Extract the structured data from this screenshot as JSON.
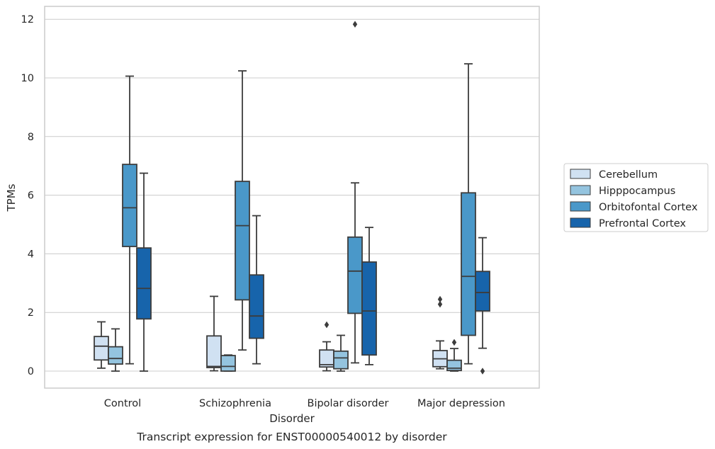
{
  "chart_data": {
    "type": "box",
    "xlabel": "Disorder",
    "ylabel": "TPMs",
    "caption": "Transcript expression for ENST00000540012 by disorder",
    "ylim": [
      -0.58,
      12.45
    ],
    "yticks": [
      0,
      2,
      4,
      6,
      8,
      10,
      12
    ],
    "grid": "horizontal",
    "legend_position": "right",
    "categories": [
      "Control",
      "Schizophrenia",
      "Bipolar disorder",
      "Major depression"
    ],
    "series": [
      {
        "name": "Cerebellum",
        "color": "#d0e1f2",
        "boxes": [
          {
            "whislo": 0.1,
            "q1": 0.38,
            "med": 0.85,
            "q3": 1.18,
            "whishi": 1.68,
            "fliers": []
          },
          {
            "whislo": 0.01,
            "q1": 0.12,
            "med": 0.16,
            "q3": 1.2,
            "whishi": 2.55,
            "fliers": []
          },
          {
            "whislo": 0.01,
            "q1": 0.14,
            "med": 0.22,
            "q3": 0.72,
            "whishi": 1.0,
            "fliers": [
              1.58
            ]
          },
          {
            "whislo": 0.08,
            "q1": 0.15,
            "med": 0.42,
            "q3": 0.7,
            "whishi": 1.03,
            "fliers": [
              2.28,
              2.45
            ]
          }
        ]
      },
      {
        "name": "Hipppocampus",
        "color": "#94c4df",
        "boxes": [
          {
            "whislo": 0.0,
            "q1": 0.24,
            "med": 0.43,
            "q3": 0.83,
            "whishi": 1.44,
            "fliers": []
          },
          {
            "whislo": 0.0,
            "q1": 0.0,
            "med": 0.16,
            "q3": 0.53,
            "whishi": 0.55,
            "fliers": []
          },
          {
            "whislo": 0.0,
            "q1": 0.08,
            "med": 0.45,
            "q3": 0.68,
            "whishi": 1.22,
            "fliers": []
          },
          {
            "whislo": 0.0,
            "q1": 0.02,
            "med": 0.1,
            "q3": 0.37,
            "whishi": 0.77,
            "fliers": [
              0.98
            ]
          }
        ]
      },
      {
        "name": "Orbitofontal Cortex",
        "color": "#4a98c9",
        "boxes": [
          {
            "whislo": 0.25,
            "q1": 4.25,
            "med": 5.57,
            "q3": 7.05,
            "whishi": 10.06,
            "fliers": []
          },
          {
            "whislo": 0.72,
            "q1": 2.43,
            "med": 4.96,
            "q3": 6.47,
            "whishi": 10.24,
            "fliers": []
          },
          {
            "whislo": 0.28,
            "q1": 1.97,
            "med": 3.41,
            "q3": 4.57,
            "whishi": 6.42,
            "fliers": [
              11.83
            ]
          },
          {
            "whislo": 0.25,
            "q1": 1.22,
            "med": 3.23,
            "q3": 6.08,
            "whishi": 10.48,
            "fliers": []
          }
        ]
      },
      {
        "name": "Prefrontal Cortex",
        "color": "#1764ab",
        "boxes": [
          {
            "whislo": 0.0,
            "q1": 1.78,
            "med": 2.82,
            "q3": 4.2,
            "whishi": 6.75,
            "fliers": []
          },
          {
            "whislo": 0.25,
            "q1": 1.12,
            "med": 1.88,
            "q3": 3.28,
            "whishi": 5.3,
            "fliers": []
          },
          {
            "whislo": 0.22,
            "q1": 0.55,
            "med": 2.05,
            "q3": 3.72,
            "whishi": 4.9,
            "fliers": []
          },
          {
            "whislo": 0.78,
            "q1": 2.05,
            "med": 2.68,
            "q3": 3.4,
            "whishi": 4.55,
            "fliers": [
              0.0
            ]
          }
        ]
      }
    ]
  }
}
